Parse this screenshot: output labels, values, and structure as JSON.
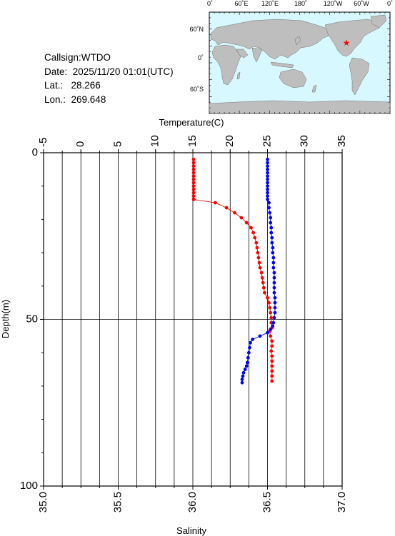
{
  "station": {
    "callsign_text": "Callsign:WTDO",
    "date_text": "Date:  2025/11/20 01:01(UTC)",
    "lat_text": "Lat.:   28.266",
    "lon_text": "Lon.:  269.648"
  },
  "map": {
    "top_ticks": [
      "0˚",
      "60˚E",
      "120˚E",
      "180˚",
      "120˚W",
      "60˚W",
      "0˚"
    ],
    "left_ticks": [
      "60˚N",
      "0˚",
      "60˚S"
    ],
    "ocean_color": "#d8f8ff",
    "land_color": "#bebebe",
    "marker_color": "#ff0000",
    "marker_icon": "star-icon"
  },
  "chart_data": {
    "type": "line",
    "top_axis": {
      "label": "Temperature(C)",
      "range": [
        -5,
        35
      ],
      "ticks": [
        "-5",
        "0",
        "5",
        "10",
        "15",
        "20",
        "25",
        "30",
        "35"
      ]
    },
    "bottom_axis": {
      "label": "Salinity",
      "range": [
        35.0,
        37.0
      ],
      "ticks": [
        "35.0",
        "35.5",
        "36.0",
        "36.5",
        "37.0"
      ]
    },
    "y_axis": {
      "label": "Depth(m)",
      "range": [
        0,
        100
      ],
      "reversed": true,
      "ticks": [
        "0",
        "50",
        "100"
      ]
    },
    "grid": true,
    "series": [
      {
        "color": "#ff0000",
        "axis": "temperature",
        "points": [
          [
            15.1,
            2
          ],
          [
            15.1,
            3
          ],
          [
            15.1,
            4
          ],
          [
            15.1,
            5
          ],
          [
            15.1,
            6
          ],
          [
            15.1,
            7
          ],
          [
            15.1,
            8
          ],
          [
            15.1,
            9
          ],
          [
            15.1,
            10
          ],
          [
            15.1,
            11
          ],
          [
            15.1,
            12
          ],
          [
            15.1,
            13
          ],
          [
            15.1,
            14
          ],
          [
            18.0,
            15
          ],
          [
            19.5,
            16.5
          ],
          [
            20.6,
            18
          ],
          [
            21.5,
            19.5
          ],
          [
            22.2,
            21
          ],
          [
            22.8,
            22.5
          ],
          [
            23.1,
            24
          ],
          [
            23.3,
            25.5
          ],
          [
            23.5,
            27
          ],
          [
            23.6,
            28.5
          ],
          [
            23.7,
            30
          ],
          [
            23.8,
            31.5
          ],
          [
            23.9,
            33
          ],
          [
            24.0,
            34.5
          ],
          [
            24.2,
            36
          ],
          [
            24.3,
            37.5
          ],
          [
            24.4,
            39
          ],
          [
            24.5,
            40.5
          ],
          [
            24.6,
            42
          ],
          [
            25.0,
            43.5
          ],
          [
            25.2,
            45
          ],
          [
            25.3,
            46.5
          ],
          [
            25.4,
            48
          ],
          [
            25.5,
            49.5
          ],
          [
            25.5,
            51
          ],
          [
            25.6,
            52.5
          ],
          [
            25.3,
            53.5
          ],
          [
            25.4,
            55
          ],
          [
            25.6,
            56.5
          ],
          [
            25.6,
            58
          ],
          [
            25.5,
            59.5
          ],
          [
            25.6,
            61
          ],
          [
            25.6,
            62.5
          ],
          [
            25.6,
            64
          ],
          [
            25.6,
            65.5
          ],
          [
            25.6,
            67
          ],
          [
            25.6,
            68.5
          ]
        ]
      },
      {
        "color": "#0000ff",
        "axis": "salinity",
        "points": [
          [
            36.5,
            2
          ],
          [
            36.5,
            3
          ],
          [
            36.5,
            4
          ],
          [
            36.5,
            5
          ],
          [
            36.5,
            6
          ],
          [
            36.5,
            7
          ],
          [
            36.5,
            8
          ],
          [
            36.5,
            9
          ],
          [
            36.5,
            10
          ],
          [
            36.5,
            11
          ],
          [
            36.5,
            12
          ],
          [
            36.5,
            13
          ],
          [
            36.5,
            14
          ],
          [
            36.51,
            15
          ],
          [
            36.51,
            16.5
          ],
          [
            36.515,
            18
          ],
          [
            36.52,
            19.5
          ],
          [
            36.52,
            21
          ],
          [
            36.525,
            22.5
          ],
          [
            36.525,
            24
          ],
          [
            36.53,
            25.5
          ],
          [
            36.53,
            27
          ],
          [
            36.535,
            28.5
          ],
          [
            36.535,
            30
          ],
          [
            36.54,
            31.5
          ],
          [
            36.54,
            33
          ],
          [
            36.54,
            34.5
          ],
          [
            36.545,
            36
          ],
          [
            36.545,
            37.5
          ],
          [
            36.545,
            39
          ],
          [
            36.545,
            40.5
          ],
          [
            36.545,
            42
          ],
          [
            36.55,
            43.5
          ],
          [
            36.55,
            45
          ],
          [
            36.55,
            46.5
          ],
          [
            36.55,
            48
          ],
          [
            36.545,
            49.5
          ],
          [
            36.54,
            51
          ],
          [
            36.535,
            52
          ],
          [
            36.52,
            53
          ],
          [
            36.5,
            54
          ],
          [
            36.45,
            55
          ],
          [
            36.4,
            56
          ],
          [
            36.385,
            57
          ],
          [
            36.38,
            58.5
          ],
          [
            36.375,
            60
          ],
          [
            36.37,
            61.5
          ],
          [
            36.365,
            63
          ],
          [
            36.36,
            64
          ],
          [
            36.35,
            65
          ],
          [
            36.34,
            66
          ],
          [
            36.335,
            67
          ],
          [
            36.33,
            68
          ],
          [
            36.33,
            69
          ]
        ]
      }
    ]
  }
}
